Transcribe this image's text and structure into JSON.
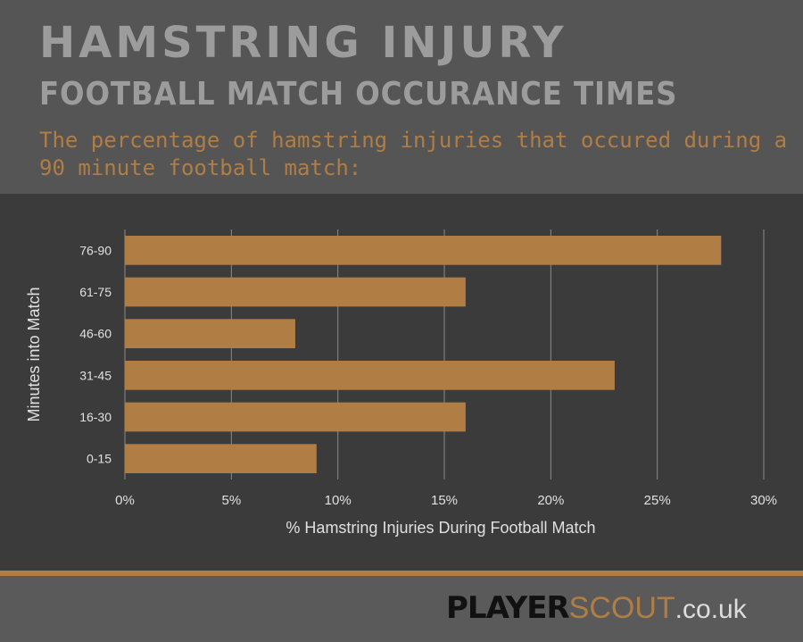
{
  "header": {
    "title_line1": "HAMSTRING INJURY",
    "title_line2": "FOOTBALL MATCH OCCURANCE TIMES",
    "subtitle": "The percentage of hamstring injuries that occured during a 90 minute football match:"
  },
  "chart_data": {
    "type": "bar",
    "orientation": "horizontal",
    "categories": [
      "76-90",
      "61-75",
      "46-60",
      "31-45",
      "16-30",
      "0-15"
    ],
    "values": [
      28,
      16,
      8,
      23,
      16,
      9
    ],
    "xlabel": "% Hamstring Injuries During Football Match",
    "ylabel": "Minutes into Match",
    "xlim": [
      0,
      30
    ],
    "xticks": [
      "0%",
      "5%",
      "10%",
      "15%",
      "20%",
      "25%",
      "30%"
    ],
    "grid": true,
    "bar_color": "#b07e45"
  },
  "footer": {
    "logo_part1": "PLAYER",
    "logo_part2": "SCOUT",
    "logo_part3": ".co.uk"
  }
}
